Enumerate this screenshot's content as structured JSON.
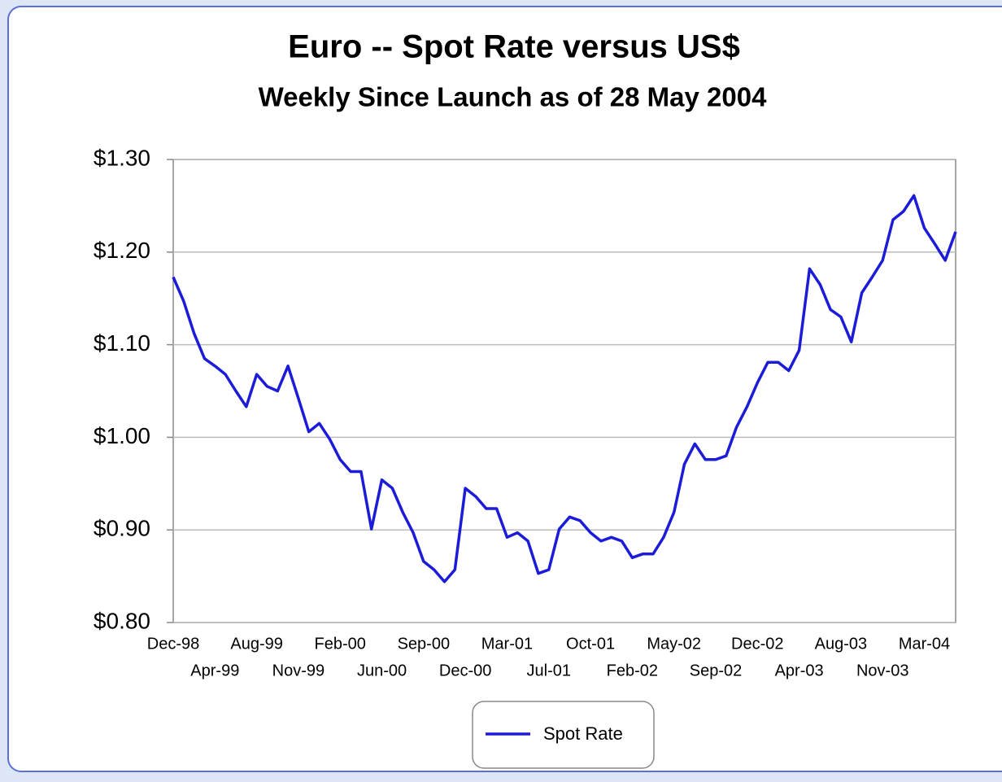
{
  "chart_data": {
    "type": "line",
    "title": "Euro -- Spot Rate versus US$",
    "subtitle": "Weekly Since Launch as of 28 May 2004",
    "categories": [
      "Dec-98",
      null,
      null,
      null,
      "Apr-99",
      null,
      null,
      null,
      "Aug-99",
      null,
      null,
      null,
      "Nov-99",
      null,
      null,
      null,
      "Feb-00",
      null,
      null,
      null,
      "Jun-00",
      null,
      null,
      null,
      "Sep-00",
      null,
      null,
      null,
      "Dec-00",
      null,
      null,
      null,
      "Mar-01",
      null,
      null,
      null,
      "Jul-01",
      null,
      null,
      null,
      "Oct-01",
      null,
      null,
      null,
      "Feb-02",
      null,
      null,
      null,
      "May-02",
      null,
      null,
      null,
      "Sep-02",
      null,
      null,
      null,
      "Dec-02",
      null,
      null,
      null,
      "Apr-03",
      null,
      null,
      null,
      "Aug-03",
      null,
      null,
      null,
      "Nov-03",
      null,
      null,
      null,
      "Mar-04",
      null,
      null,
      null
    ],
    "series": [
      {
        "name": "Spot Rate",
        "color": "#1c1cd8",
        "values": [
          1.173,
          1.147,
          1.112,
          1.085,
          1.077,
          1.068,
          1.05,
          1.033,
          1.068,
          1.055,
          1.05,
          1.077,
          1.042,
          1.006,
          1.015,
          0.998,
          0.976,
          0.963,
          0.963,
          0.901,
          0.954,
          0.945,
          0.919,
          0.897,
          0.866,
          0.857,
          0.844,
          0.857,
          0.945,
          0.936,
          0.923,
          0.923,
          0.892,
          0.897,
          0.888,
          0.853,
          0.857,
          0.901,
          0.914,
          0.91,
          0.897,
          0.888,
          0.892,
          0.888,
          0.87,
          0.874,
          0.874,
          0.892,
          0.919,
          0.971,
          0.993,
          0.976,
          0.976,
          0.98,
          1.011,
          1.033,
          1.059,
          1.081,
          1.081,
          1.072,
          1.094,
          1.182,
          1.165,
          1.138,
          1.13,
          1.103,
          1.156,
          1.173,
          1.191,
          1.235,
          1.244,
          1.261,
          1.226,
          1.209,
          1.191,
          1.222
        ]
      }
    ],
    "ylim": [
      0.8,
      1.3
    ],
    "yticks": [
      {
        "value": 0.8,
        "label": "$0.80"
      },
      {
        "value": 0.9,
        "label": "$0.90"
      },
      {
        "value": 1.0,
        "label": "$1.00"
      },
      {
        "value": 1.1,
        "label": "$1.10"
      },
      {
        "value": 1.2,
        "label": "$1.20"
      },
      {
        "value": 1.3,
        "label": "$1.30"
      }
    ],
    "grid": true,
    "legend": "bottom"
  }
}
